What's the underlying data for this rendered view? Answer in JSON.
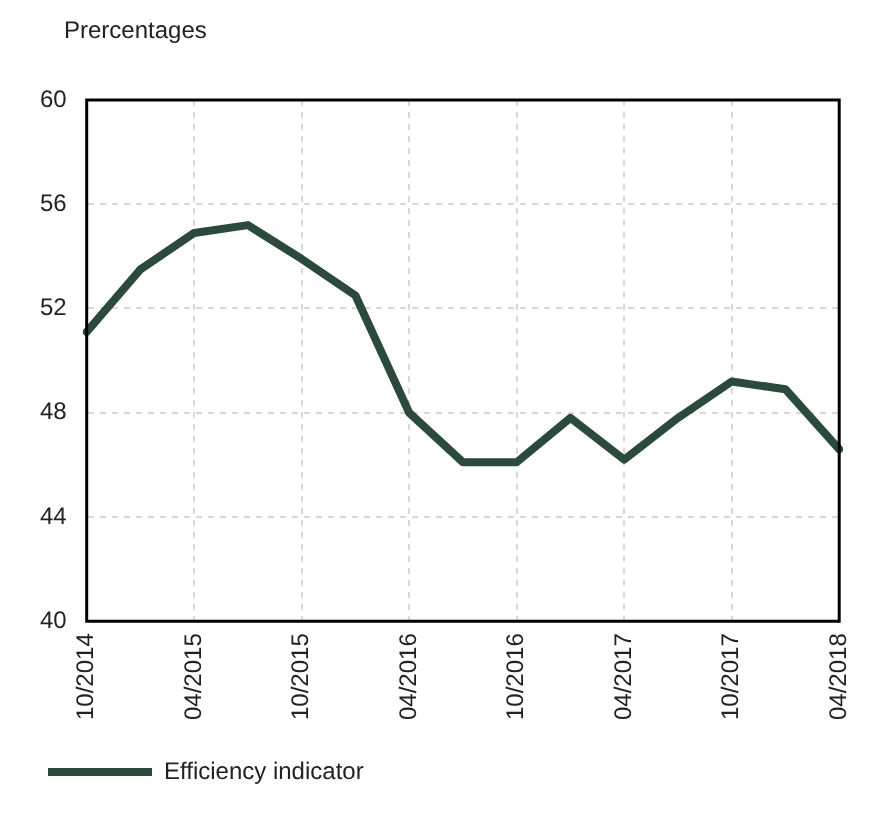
{
  "chart_data": {
    "type": "line",
    "ylabel": "Prercentages",
    "categories": [
      "10/2014",
      null,
      "04/2015",
      null,
      "10/2015",
      null,
      "04/2016",
      null,
      "10/2016",
      null,
      "04/2017",
      null,
      "10/2017",
      null,
      "04/2018"
    ],
    "series": [
      {
        "name": "Efficiency indicator",
        "color": "#2b4a3c",
        "values": [
          51.1,
          53.5,
          54.9,
          55.2,
          53.9,
          52.5,
          48.0,
          46.1,
          46.1,
          47.8,
          46.2,
          47.8,
          49.2,
          48.9,
          46.6
        ]
      }
    ],
    "ylim": [
      40,
      60
    ],
    "yticks": [
      40,
      44,
      48,
      52,
      56,
      60
    ],
    "grid": true,
    "legend": "bottom left",
    "marker": "none",
    "line_style": "solid"
  }
}
